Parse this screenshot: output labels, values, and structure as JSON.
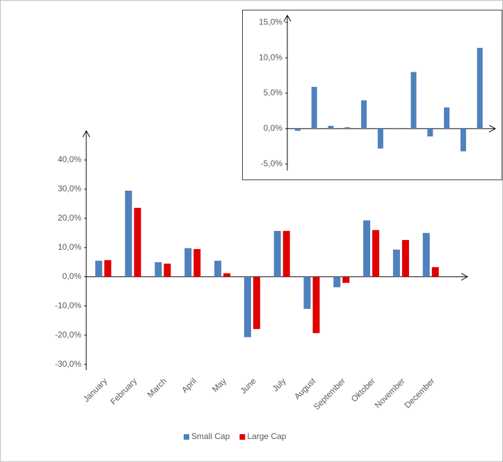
{
  "chart_data": [
    {
      "type": "bar",
      "categories": [
        "January",
        "February",
        "March",
        "April",
        "May",
        "June",
        "July",
        "August",
        "September",
        "Oktober",
        "November",
        "December"
      ],
      "series": [
        {
          "name": "Small Cap",
          "color": "#4f81bd",
          "values": [
            5.5,
            29.5,
            5.0,
            9.8,
            5.5,
            -20.7,
            15.7,
            -11.0,
            -3.6,
            19.3,
            9.3,
            15.0
          ]
        },
        {
          "name": "Large Cap",
          "color": "#e00000",
          "values": [
            5.7,
            23.6,
            4.5,
            9.5,
            1.2,
            -17.9,
            15.7,
            -19.3,
            -2.1,
            16.0,
            12.6,
            3.3
          ]
        }
      ],
      "ylim": [
        -32,
        50
      ],
      "yticks": [
        {
          "value": -30,
          "label": "-30,0%"
        },
        {
          "value": -20,
          "label": "-20,0%"
        },
        {
          "value": -10,
          "label": "-10,0%"
        },
        {
          "value": 0,
          "label": "0,0%"
        },
        {
          "value": 10,
          "label": "10,0%"
        },
        {
          "value": 20,
          "label": "20,0%"
        },
        {
          "value": 30,
          "label": "30,0%"
        },
        {
          "value": 40,
          "label": "40,0%"
        }
      ],
      "legend": "bottom"
    },
    {
      "type": "bar",
      "values": [
        -0.3,
        5.9,
        0.4,
        0.2,
        4.0,
        -2.8,
        0.1,
        8.0,
        -1.1,
        3.0,
        -3.2,
        11.4
      ],
      "color": "#4f81bd",
      "ylim": [
        -5.9,
        16
      ],
      "yticks": [
        {
          "value": -5,
          "label": "-5,0%"
        },
        {
          "value": 0,
          "label": "0,0%"
        },
        {
          "value": 5,
          "label": "5,0%"
        },
        {
          "value": 10,
          "label": "10,0%"
        },
        {
          "value": 15,
          "label": "15,0%"
        }
      ]
    }
  ]
}
